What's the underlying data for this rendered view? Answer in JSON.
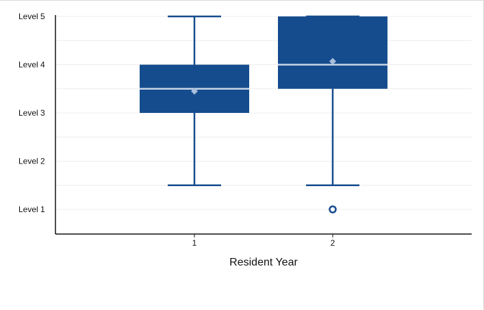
{
  "chart_data": {
    "type": "boxplot",
    "xlabel": "Resident Year",
    "ylabel": "",
    "y_tick_labels": [
      "Level 1",
      "Level 2",
      "Level 3",
      "Level 4",
      "Level 5"
    ],
    "y_tick_values": [
      1,
      2,
      3,
      4,
      5
    ],
    "ylim": [
      0.5,
      5
    ],
    "grid": true,
    "legend": "none",
    "colors": {
      "box": "#154c8e",
      "median": "#c9d6e6",
      "mean": "#a9bfdc",
      "grid": "#ececec",
      "axis": "#111111"
    },
    "categories": [
      "1",
      "2"
    ],
    "boxes": [
      {
        "category": "1",
        "whisker_low": 1.5,
        "q1": 3,
        "median": 3.5,
        "q3": 4,
        "whisker_high": 5,
        "mean": 3.45,
        "outliers": []
      },
      {
        "category": "2",
        "whisker_low": 1.5,
        "q1": 3.5,
        "median": 4,
        "q3": 5,
        "whisker_high": 5,
        "mean": 4.07,
        "outliers": [
          1
        ]
      }
    ]
  }
}
